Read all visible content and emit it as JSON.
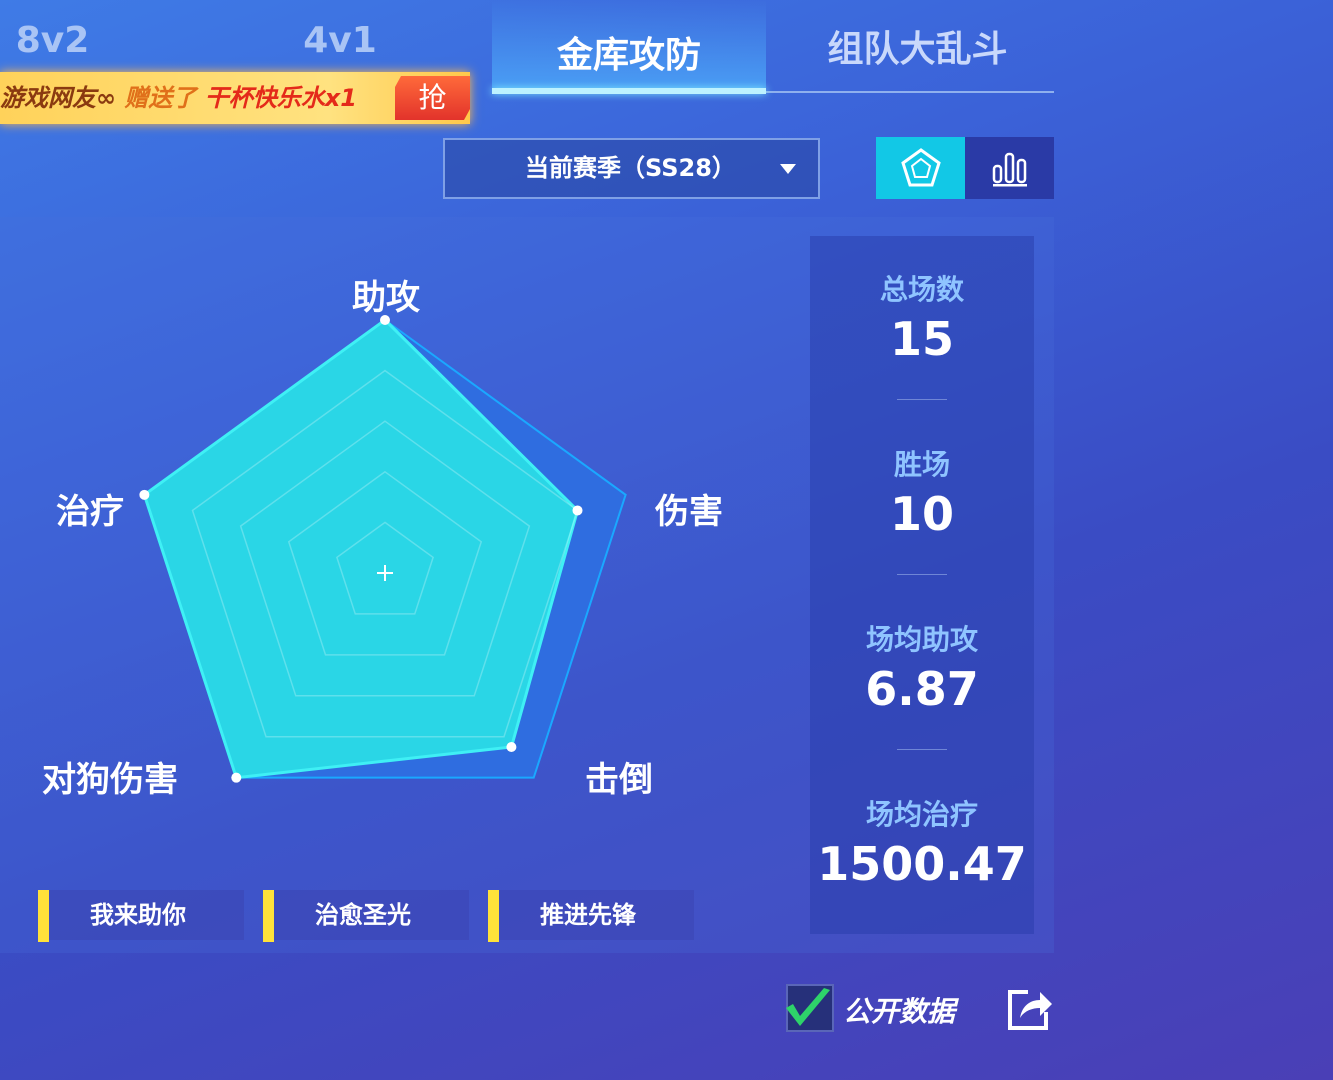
{
  "tabs": [
    {
      "label": "8v2",
      "active": false
    },
    {
      "label": "4v1",
      "active": false
    },
    {
      "label": "金库攻防",
      "active": true
    },
    {
      "label": "组队大乱斗",
      "active": false
    }
  ],
  "banner": {
    "sender": "游戏网友∞",
    "verb": "赠送了",
    "gift": "干杯快乐水x1",
    "grab_label": "抢"
  },
  "season_select": {
    "value": "当前赛季（SS28）"
  },
  "view_toggle": {
    "options": [
      "radar-icon",
      "bar-chart-icon"
    ],
    "selected": "radar-icon"
  },
  "radar": {
    "axes": [
      "助攻",
      "伤害",
      "击倒",
      "对狗伤害",
      "治疗"
    ],
    "values": [
      1.0,
      0.8,
      0.85,
      1.0,
      1.0
    ],
    "rings": 5,
    "fill_color": "#2ad6e6",
    "outline_color": "#1aa8ff"
  },
  "stats": [
    {
      "label": "总场数",
      "value": "15"
    },
    {
      "label": "胜场",
      "value": "10"
    },
    {
      "label": "场均助攻",
      "value": "6.87"
    },
    {
      "label": "场均治疗",
      "value": "1500.47"
    }
  ],
  "badges": [
    "我来助你",
    "治愈圣光",
    "推进先锋"
  ],
  "footer": {
    "public_label": "公开数据",
    "public_checked": true
  }
}
